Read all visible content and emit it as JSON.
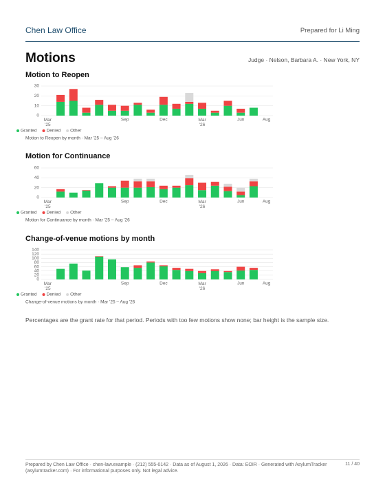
{
  "header": {
    "firm": "Chen Law Office",
    "prepared_for": "Prepared for Li Ming"
  },
  "page": {
    "title": "Motions",
    "context": "Judge · Nelson, Barbara A. · New York, NY"
  },
  "chart_data": [
    {
      "type": "bar",
      "stacked": true,
      "title": "Motion to Reopen",
      "caption": "Motion to Reopen by month · Mar '25 – Aug '26",
      "categories": [
        "Mar '25",
        null,
        null,
        null,
        null,
        null,
        "Sep",
        null,
        null,
        "Dec",
        null,
        null,
        "Mar '26",
        null,
        null,
        "Jun",
        null,
        "Aug"
      ],
      "series": [
        {
          "name": "Granted",
          "color": "#22c55e",
          "values": [
            null,
            14,
            15,
            3,
            11,
            5,
            5,
            11,
            3,
            11,
            7,
            12,
            7,
            3,
            10,
            3,
            8,
            null
          ]
        },
        {
          "name": "Denied",
          "color": "#ef4444",
          "values": [
            null,
            7,
            12,
            5,
            5,
            6,
            5,
            2,
            3,
            8,
            5,
            2,
            6,
            2,
            5,
            4,
            0,
            null
          ]
        },
        {
          "name": "Other",
          "color": "#d9d9d9",
          "values": [
            null,
            0,
            0,
            0,
            0,
            0,
            0,
            0,
            0,
            0,
            0,
            9,
            0,
            0,
            0,
            0,
            0,
            null
          ]
        }
      ],
      "ylim": [
        0,
        30
      ],
      "yticks": [
        0,
        10,
        20,
        30
      ],
      "grid": true,
      "legend": "bottom-left"
    },
    {
      "type": "bar",
      "stacked": true,
      "title": "Motion for Continuance",
      "caption": "Motion for Continuance by month · Mar '25 – Aug '26",
      "categories": [
        "Mar '25",
        null,
        null,
        null,
        null,
        null,
        "Sep",
        null,
        null,
        "Dec",
        null,
        null,
        "Mar '26",
        null,
        null,
        "Jun",
        null,
        "Aug"
      ],
      "series": [
        {
          "name": "Granted",
          "color": "#22c55e",
          "values": [
            null,
            12,
            10,
            14,
            29,
            20,
            20,
            20,
            21,
            17,
            20,
            25,
            15,
            24,
            13,
            5,
            23,
            null
          ]
        },
        {
          "name": "Denied",
          "color": "#ef4444",
          "values": [
            null,
            5,
            0,
            1,
            0,
            3,
            14,
            13,
            12,
            7,
            4,
            14,
            15,
            8,
            9,
            7,
            10,
            null
          ]
        },
        {
          "name": "Other",
          "color": "#d9d9d9",
          "values": [
            null,
            0,
            0,
            0,
            0,
            0,
            0,
            5,
            5,
            0,
            0,
            7,
            0,
            0,
            6,
            8,
            5,
            null
          ]
        }
      ],
      "ylim": [
        0,
        60
      ],
      "yticks": [
        0,
        20,
        40,
        60
      ],
      "grid": true,
      "legend": "bottom-left"
    },
    {
      "type": "bar",
      "stacked": true,
      "title": "Change-of-venue motions by month",
      "caption": "Change-of-venue motions by month · Mar '25 – Aug '26",
      "categories": [
        "Mar '25",
        null,
        null,
        null,
        null,
        null,
        "Sep",
        null,
        null,
        "Dec",
        null,
        null,
        "Mar '26",
        null,
        null,
        "Jun",
        null,
        "Aug"
      ],
      "series": [
        {
          "name": "Granted",
          "color": "#22c55e",
          "values": [
            null,
            50,
            75,
            42,
            108,
            95,
            58,
            55,
            80,
            62,
            45,
            40,
            30,
            40,
            35,
            42,
            45,
            null
          ]
        },
        {
          "name": "Denied",
          "color": "#ef4444",
          "values": [
            null,
            0,
            0,
            0,
            2,
            0,
            0,
            12,
            5,
            5,
            10,
            10,
            10,
            8,
            5,
            18,
            10,
            null
          ]
        },
        {
          "name": "Other",
          "color": "#d9d9d9",
          "values": [
            null,
            0,
            0,
            0,
            0,
            0,
            0,
            0,
            0,
            0,
            0,
            0,
            0,
            0,
            0,
            0,
            0,
            null
          ]
        }
      ],
      "ylim": [
        0,
        140
      ],
      "yticks": [
        0,
        20,
        40,
        60,
        80,
        100,
        120,
        140
      ],
      "grid": true,
      "legend": "bottom-left"
    }
  ],
  "note": "Percentages are the grant rate for that period. Periods with too few motions show none; bar height is the sample size.",
  "footer": {
    "text": "Prepared by Chen Law Office · chen-law.example · (212) 555-0142 · Data as of August 1, 2026 · Data: EOIR · Generated with AsylumTracker (asylumtracker.com) · For informational purposes only. Not legal advice.",
    "page": "11 / 40"
  }
}
